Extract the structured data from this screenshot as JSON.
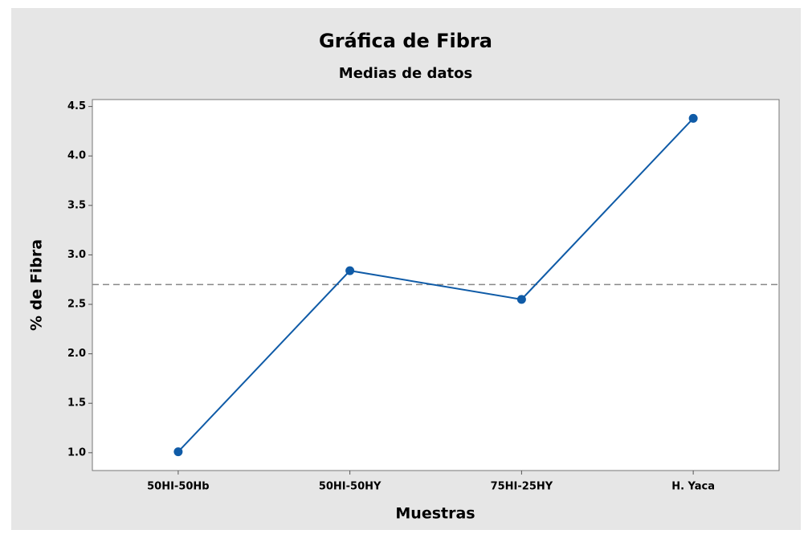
{
  "chart_data": {
    "type": "line",
    "title": "Gráfica de Fibra",
    "subtitle": "Medias de datos",
    "x_label": "Muestras",
    "y_label": "% de Fibra",
    "categories": [
      "50HI-50Hb",
      "50HI-50HY",
      "75HI-25HY",
      "H. Yaca"
    ],
    "series": [
      {
        "name": "Fibra",
        "color": "#0f5ba7",
        "values": [
          1.01,
          2.84,
          2.55,
          4.38
        ]
      }
    ],
    "reference_line": 2.7,
    "ylim": [
      0.82,
      4.57
    ],
    "yticks": [
      {
        "value": 1,
        "label": "1.0"
      },
      1.5,
      {
        "value": 2,
        "label": "2.0"
      },
      2.5,
      {
        "value": 3,
        "label": "3.0"
      },
      3.5,
      {
        "value": 4,
        "label": "4.0"
      },
      4.5
    ]
  }
}
